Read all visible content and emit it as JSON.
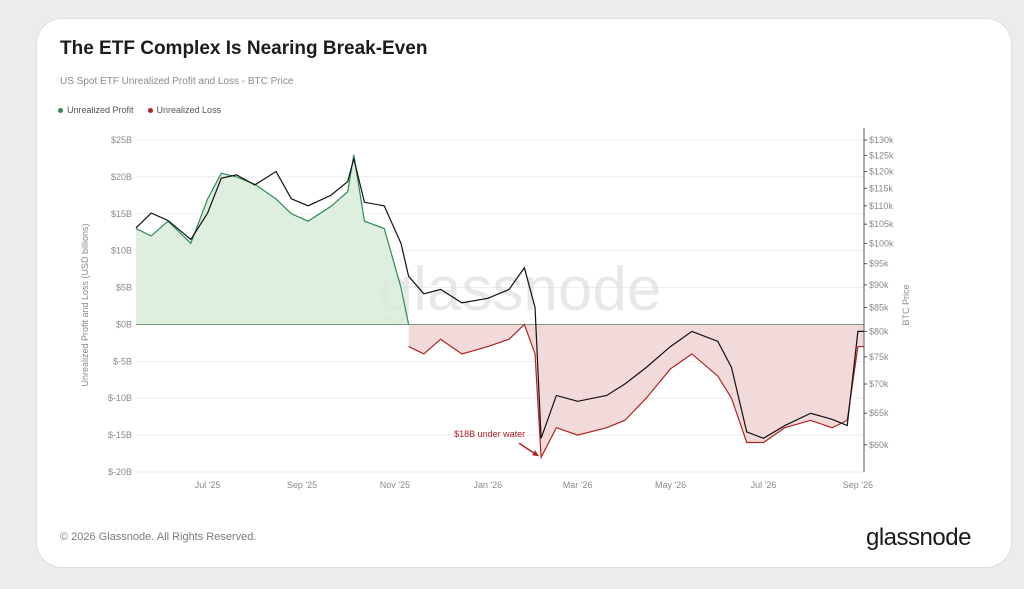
{
  "header": {
    "title": "The ETF Complex Is Nearing Break-Even",
    "subtitle": "US Spot ETF Unrealized Profit and Loss - BTC Price"
  },
  "legend": [
    {
      "label": "Unrealized Profit",
      "color": "#2e8b57"
    },
    {
      "label": "Unrealized Loss",
      "color": "#b22222"
    }
  ],
  "watermark": "glassnode",
  "footer": {
    "copyright": "© 2026 Glassnode. All Rights Reserved.",
    "brand": "glassnode"
  },
  "colors": {
    "profit_fill": "#d8ecda",
    "profit_line": "#2e8b57",
    "loss_fill": "#f1d3d3",
    "loss_line": "#b22222",
    "price_line": "#111111",
    "zero_line": "#7a9a7a"
  },
  "chart_data": {
    "type": "area",
    "title": "The ETF Complex Is Nearing Break-Even",
    "subtitle": "US Spot ETF Unrealized Profit and Loss - BTC Price",
    "ylabel": "Unrealized Profit and Loss (USD billions)",
    "y2label": "BTC Price",
    "ylim": [
      -20,
      25
    ],
    "y_ticks": [
      "$25B",
      "$20B",
      "$15B",
      "$10B",
      "$5B",
      "$0B",
      "$-5B",
      "$-10B",
      "$-15B",
      "$-20B"
    ],
    "y_tick_values": [
      25,
      20,
      15,
      10,
      5,
      0,
      -5,
      -10,
      -15,
      -20
    ],
    "y2_log_scale": true,
    "y2lim": [
      56000,
      130000
    ],
    "y2_ticks": [
      "$130k",
      "$125k",
      "$120k",
      "$115k",
      "$110k",
      "$105k",
      "$100k",
      "$95k",
      "$90k",
      "$85k",
      "$80k",
      "$75k",
      "$70k",
      "$65k",
      "$60k"
    ],
    "y2_tick_values": [
      130000,
      125000,
      120000,
      115000,
      110000,
      105000,
      100000,
      95000,
      90000,
      85000,
      80000,
      75000,
      70000,
      65000,
      60000
    ],
    "x_ticks": [
      "Jul '25",
      "Sep '25",
      "Nov '25",
      "Jan '26",
      "Mar '26",
      "May '26",
      "Jul '26",
      "Sep '26"
    ],
    "x_tick_values": [
      "2025-07-01",
      "2025-09-01",
      "2025-11-01",
      "2026-01-01",
      "2026-03-01",
      "2026-05-01",
      "2026-07-01",
      "2026-09-01"
    ],
    "xlim": [
      "2025-05-15",
      "2026-09-05"
    ],
    "grid": true,
    "legend_position": "top-left",
    "annotation": {
      "text": "$18B under water",
      "date": "2026-02-05",
      "value": -18
    },
    "series": [
      {
        "name": "Unrealized Profit",
        "color": "#2e8b57",
        "x": [
          "2025-05-15",
          "2025-05-25",
          "2025-06-05",
          "2025-06-20",
          "2025-07-01",
          "2025-07-10",
          "2025-07-20",
          "2025-08-01",
          "2025-08-15",
          "2025-08-25",
          "2025-09-05",
          "2025-09-20",
          "2025-10-01",
          "2025-10-05",
          "2025-10-12",
          "2025-10-25",
          "2025-11-05",
          "2025-11-10"
        ],
        "values": [
          13,
          12,
          14,
          11,
          17,
          20.5,
          20,
          19,
          17,
          15,
          14,
          16,
          18,
          23,
          14,
          13,
          5,
          0
        ]
      },
      {
        "name": "Unrealized Loss",
        "color": "#b22222",
        "x": [
          "2025-11-10",
          "2025-11-20",
          "2025-12-01",
          "2025-12-15",
          "2026-01-01",
          "2026-01-15",
          "2026-01-25",
          "2026-02-01",
          "2026-02-05",
          "2026-02-15",
          "2026-03-01",
          "2026-03-20",
          "2026-04-01",
          "2026-04-15",
          "2026-05-01",
          "2026-05-15",
          "2026-06-01",
          "2026-06-10",
          "2026-06-20",
          "2026-07-01",
          "2026-07-15",
          "2026-08-01",
          "2026-08-15",
          "2026-08-25",
          "2026-09-01",
          "2026-09-05"
        ],
        "values": [
          -3,
          -4,
          -2,
          -4,
          -3,
          -2,
          0,
          -4,
          -18,
          -14,
          -15,
          -14,
          -13,
          -10,
          -6,
          -4,
          -7,
          -10,
          -16,
          -16,
          -14,
          -13,
          -14,
          -13,
          -3,
          -3
        ]
      },
      {
        "name": "BTC Price",
        "axis": "right",
        "color": "#111111",
        "x": [
          "2025-05-15",
          "2025-05-25",
          "2025-06-05",
          "2025-06-20",
          "2025-07-01",
          "2025-07-10",
          "2025-07-20",
          "2025-08-01",
          "2025-08-15",
          "2025-08-25",
          "2025-09-05",
          "2025-09-20",
          "2025-10-01",
          "2025-10-05",
          "2025-10-12",
          "2025-10-25",
          "2025-11-05",
          "2025-11-10",
          "2025-11-20",
          "2025-12-01",
          "2025-12-15",
          "2026-01-01",
          "2026-01-15",
          "2026-01-25",
          "2026-02-01",
          "2026-02-05",
          "2026-02-15",
          "2026-03-01",
          "2026-03-20",
          "2026-04-01",
          "2026-04-15",
          "2026-05-01",
          "2026-05-15",
          "2026-06-01",
          "2026-06-10",
          "2026-06-20",
          "2026-07-01",
          "2026-07-15",
          "2026-08-01",
          "2026-08-15",
          "2026-08-25",
          "2026-09-01",
          "2026-09-05"
        ],
        "values": [
          104000,
          108000,
          106000,
          101000,
          108000,
          118000,
          119000,
          116000,
          120000,
          112000,
          110000,
          113000,
          117000,
          124000,
          111000,
          110000,
          100000,
          92000,
          88000,
          89000,
          86000,
          87000,
          89000,
          94000,
          85000,
          61000,
          68000,
          67000,
          68000,
          70000,
          73000,
          77000,
          80000,
          78000,
          73000,
          62000,
          61000,
          63000,
          65000,
          64000,
          63000,
          80000,
          80000
        ]
      }
    ]
  }
}
